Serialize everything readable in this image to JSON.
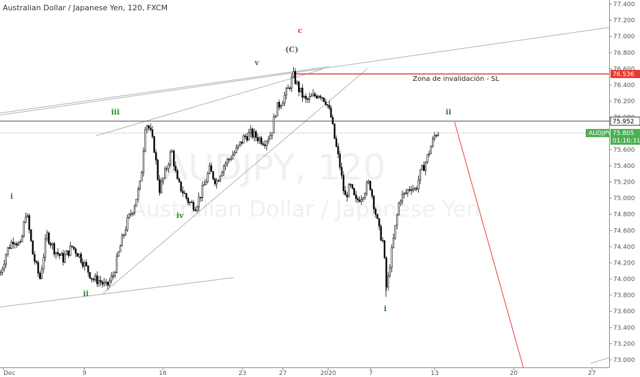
{
  "header": {
    "title": "Australian Dollar / Japanese Yen, 120, FXCM"
  },
  "watermark": {
    "main": "AUDJPY, 120",
    "sub": "Australian Dollar / Japanese Yen"
  },
  "colors": {
    "axis": "#555555",
    "candle": "#000000",
    "green_label": "#2e8b2e",
    "red": "#e53935",
    "tag_green": "#4caf50",
    "trend": "#b0b0b0"
  },
  "chart_data": {
    "type": "candlestick",
    "symbol": "AUDJPY",
    "timeframe": "120",
    "source": "FXCM",
    "ylim": [
      72.95,
      77.45
    ],
    "y_ticks": [
      "77.400",
      "77.200",
      "77.000",
      "76.800",
      "76.600",
      "76.400",
      "76.200",
      "76.000",
      "75.800",
      "75.600",
      "75.400",
      "75.200",
      "75.000",
      "74.800",
      "74.600",
      "74.400",
      "74.200",
      "74.000",
      "73.800",
      "73.600",
      "73.400",
      "73.200",
      "73.000"
    ],
    "x_ticks": [
      "Dec",
      "9",
      "16",
      "23",
      "27",
      "2020",
      "7",
      "13",
      "20",
      "27"
    ],
    "close_path": [
      [
        0,
        74.05
      ],
      [
        10,
        74.35
      ],
      [
        20,
        74.5
      ],
      [
        30,
        74.4
      ],
      [
        38,
        74.85
      ],
      [
        48,
        74.3
      ],
      [
        58,
        74.0
      ],
      [
        68,
        74.55
      ],
      [
        80,
        74.35
      ],
      [
        92,
        74.25
      ],
      [
        105,
        74.4
      ],
      [
        115,
        74.3
      ],
      [
        125,
        74.15
      ],
      [
        135,
        74.0
      ],
      [
        145,
        73.98
      ],
      [
        155,
        73.9
      ],
      [
        165,
        74.05
      ],
      [
        175,
        74.4
      ],
      [
        185,
        74.7
      ],
      [
        195,
        74.9
      ],
      [
        205,
        75.2
      ],
      [
        212,
        75.95
      ],
      [
        218,
        75.85
      ],
      [
        225,
        75.6
      ],
      [
        232,
        75.1
      ],
      [
        240,
        75.3
      ],
      [
        250,
        75.6
      ],
      [
        258,
        75.2
      ],
      [
        265,
        75.1
      ],
      [
        275,
        74.95
      ],
      [
        285,
        74.9
      ],
      [
        295,
        75.1
      ],
      [
        305,
        75.35
      ],
      [
        315,
        75.2
      ],
      [
        325,
        75.4
      ],
      [
        335,
        75.5
      ],
      [
        345,
        75.6
      ],
      [
        355,
        75.75
      ],
      [
        365,
        75.8
      ],
      [
        375,
        75.75
      ],
      [
        385,
        75.7
      ],
      [
        395,
        75.8
      ],
      [
        402,
        76.1
      ],
      [
        410,
        76.2
      ],
      [
        420,
        76.35
      ],
      [
        427,
        76.52
      ],
      [
        435,
        76.35
      ],
      [
        445,
        76.2
      ],
      [
        455,
        76.25
      ],
      [
        465,
        76.3
      ],
      [
        475,
        76.2
      ],
      [
        482,
        76.0
      ],
      [
        488,
        75.7
      ],
      [
        495,
        75.4
      ],
      [
        502,
        75.0
      ],
      [
        510,
        75.15
      ],
      [
        518,
        74.95
      ],
      [
        528,
        75.05
      ],
      [
        538,
        75.2
      ],
      [
        545,
        74.9
      ],
      [
        552,
        74.6
      ],
      [
        558,
        74.45
      ],
      [
        563,
        73.85
      ],
      [
        568,
        74.2
      ],
      [
        575,
        74.6
      ],
      [
        582,
        75.0
      ],
      [
        590,
        75.05
      ],
      [
        598,
        75.15
      ],
      [
        605,
        75.1
      ],
      [
        612,
        75.3
      ],
      [
        620,
        75.45
      ],
      [
        628,
        75.65
      ],
      [
        634,
        75.8
      ],
      [
        640,
        75.82
      ]
    ],
    "levels": [
      {
        "value": 76.536,
        "label": "76.536",
        "name": "Zona de invalidación - SL"
      },
      {
        "value": 75.952,
        "label": "75.952"
      },
      {
        "value": 75.805,
        "label": "75.805",
        "name": "AUDJPY",
        "countdown": "01:16:31"
      }
    ],
    "wave_labels": [
      "i",
      "ii",
      "iii",
      "iv",
      "v",
      "(C)",
      "c",
      "ii",
      "i"
    ],
    "annotation": "Zona de invalidación - SL"
  }
}
